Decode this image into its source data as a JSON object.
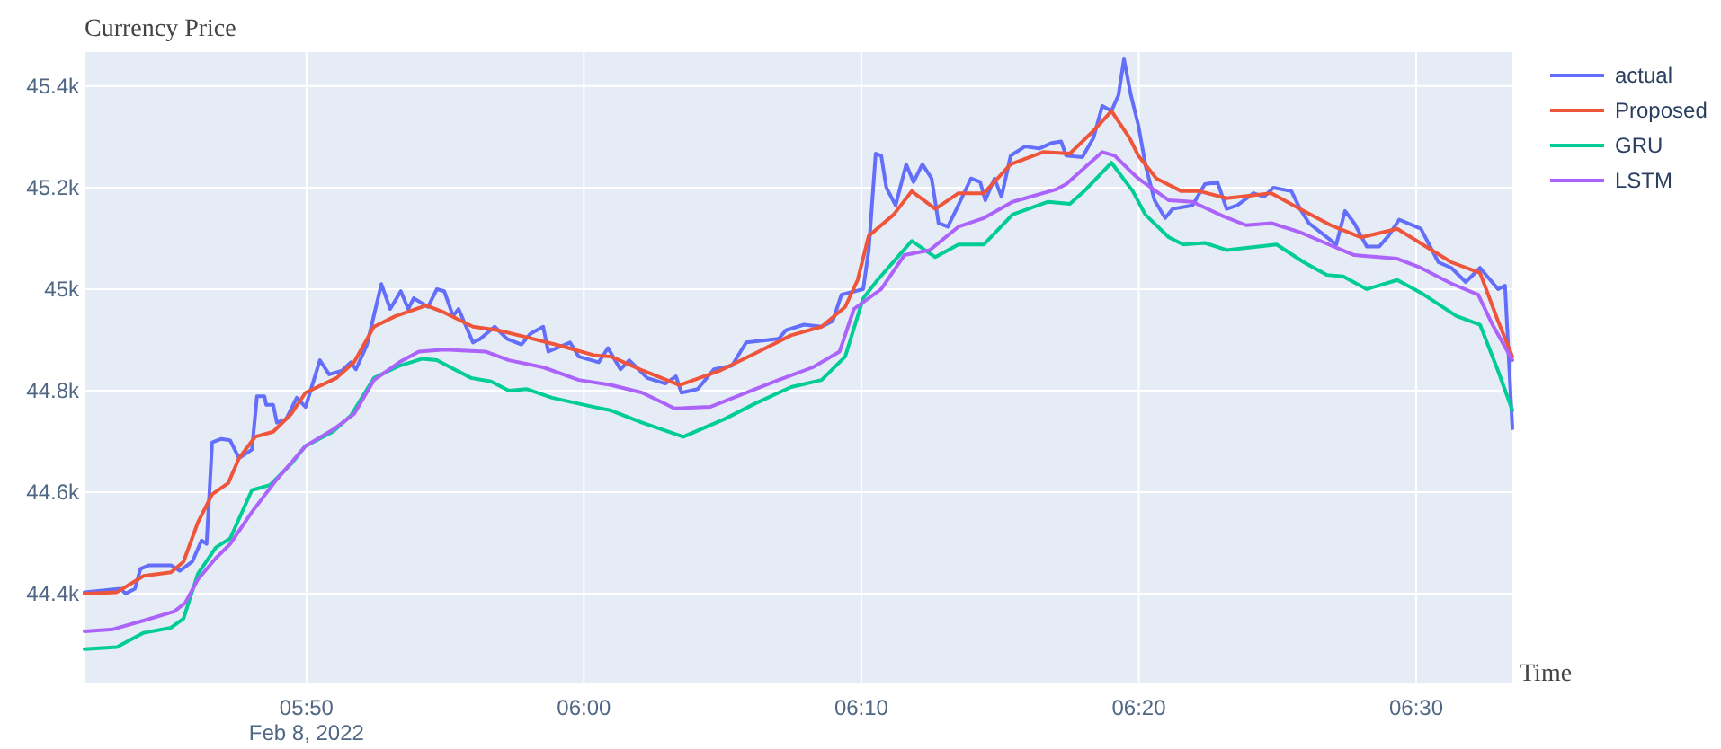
{
  "chart_data": {
    "type": "line",
    "title": "Currency Price",
    "xlabel": "Time",
    "xlim": [
      "2022-02-08T05:42:00",
      "2022-02-08T06:33:28"
    ],
    "xticks": [
      {
        "value": "2022-02-08T05:50:00",
        "label": "05:50\nFeb 8, 2022"
      },
      {
        "value": "2022-02-08T06:00:00",
        "label": "06:00"
      },
      {
        "value": "2022-02-08T06:10:00",
        "label": "06:10"
      },
      {
        "value": "2022-02-08T06:20:00",
        "label": "06:20"
      },
      {
        "value": "2022-02-08T06:30:00",
        "label": "06:30"
      }
    ],
    "ylim": [
      44225,
      45467
    ],
    "yticks": [
      {
        "value": 44400,
        "label": "44.4k"
      },
      {
        "value": 44600,
        "label": "44.6k"
      },
      {
        "value": 44800,
        "label": "44.8k"
      },
      {
        "value": 45000,
        "label": "45k"
      },
      {
        "value": 45200,
        "label": "45.2k"
      },
      {
        "value": 45400,
        "label": "45.4k"
      }
    ],
    "grid": true,
    "legend": "top right",
    "line_style": "solid",
    "series": [
      {
        "name": "actual",
        "color": "#636efa",
        "x": [
          "2022-02-08T05:42:00",
          "2022-02-08T05:43:18",
          "2022-02-08T05:43:29",
          "2022-02-08T05:43:49",
          "2022-02-08T05:44:01",
          "2022-02-08T05:44:20",
          "2022-02-08T05:45:07",
          "2022-02-08T05:45:26",
          "2022-02-08T05:45:53",
          "2022-02-08T05:46:13",
          "2022-02-08T05:46:24",
          "2022-02-08T05:46:36",
          "2022-02-08T05:46:56",
          "2022-02-08T05:47:15",
          "2022-02-08T05:47:34",
          "2022-02-08T05:48:02",
          "2022-02-08T05:48:13",
          "2022-02-08T05:48:29",
          "2022-02-08T05:48:33",
          "2022-02-08T05:48:48",
          "2022-02-08T05:48:56",
          "2022-02-08T05:49:16",
          "2022-02-08T05:49:39",
          "2022-02-08T05:49:58",
          "2022-02-08T05:50:29",
          "2022-02-08T05:50:49",
          "2022-02-08T05:51:16",
          "2022-02-08T05:51:36",
          "2022-02-08T05:51:47",
          "2022-02-08T05:52:11",
          "2022-02-08T05:52:42",
          "2022-02-08T05:53:01",
          "2022-02-08T05:53:24",
          "2022-02-08T05:53:40",
          "2022-02-08T05:53:52",
          "2022-02-08T05:54:23",
          "2022-02-08T05:54:42",
          "2022-02-08T05:54:58",
          "2022-02-08T05:55:17",
          "2022-02-08T05:55:29",
          "2022-02-08T05:56:00",
          "2022-02-08T05:56:16",
          "2022-02-08T05:56:47",
          "2022-02-08T05:57:14",
          "2022-02-08T05:57:45",
          "2022-02-08T05:58:04",
          "2022-02-08T05:58:32",
          "2022-02-08T05:58:43",
          "2022-02-08T05:59:30",
          "2022-02-08T05:59:49",
          "2022-02-08T06:00:32",
          "2022-02-08T06:00:52",
          "2022-02-08T06:01:19",
          "2022-02-08T06:01:38",
          "2022-02-08T06:02:17",
          "2022-02-08T06:02:56",
          "2022-02-08T06:03:19",
          "2022-02-08T06:03:31",
          "2022-02-08T06:04:06",
          "2022-02-08T06:04:41",
          "2022-02-08T06:05:20",
          "2022-02-08T06:05:51",
          "2022-02-08T06:07:01",
          "2022-02-08T06:07:17",
          "2022-02-08T06:07:56",
          "2022-02-08T06:08:34",
          "2022-02-08T06:08:58",
          "2022-02-08T06:09:17",
          "2022-02-08T06:10:04",
          "2022-02-08T06:10:16",
          "2022-02-08T06:10:31",
          "2022-02-08T06:10:43",
          "2022-02-08T06:10:54",
          "2022-02-08T06:11:14",
          "2022-02-08T06:11:37",
          "2022-02-08T06:11:53",
          "2022-02-08T06:12:12",
          "2022-02-08T06:12:32",
          "2022-02-08T06:12:47",
          "2022-02-08T06:13:07",
          "2022-02-08T06:13:26",
          "2022-02-08T06:13:57",
          "2022-02-08T06:14:17",
          "2022-02-08T06:14:28",
          "2022-02-08T06:14:48",
          "2022-02-08T06:15:03",
          "2022-02-08T06:15:23",
          "2022-02-08T06:15:54",
          "2022-02-08T06:16:25",
          "2022-02-08T06:16:52",
          "2022-02-08T06:17:12",
          "2022-02-08T06:17:23",
          "2022-02-08T06:17:58",
          "2022-02-08T06:18:22",
          "2022-02-08T06:18:41",
          "2022-02-08T06:19:01",
          "2022-02-08T06:19:16",
          "2022-02-08T06:19:28",
          "2022-02-08T06:19:43",
          "2022-02-08T06:19:59",
          "2022-02-08T06:20:15",
          "2022-02-08T06:20:34",
          "2022-02-08T06:20:57",
          "2022-02-08T06:21:13",
          "2022-02-08T06:21:56",
          "2022-02-08T06:22:23",
          "2022-02-08T06:22:50",
          "2022-02-08T06:23:10",
          "2022-02-08T06:23:33",
          "2022-02-08T06:24:08",
          "2022-02-08T06:24:31",
          "2022-02-08T06:24:51",
          "2022-02-08T06:25:30",
          "2022-02-08T06:25:49",
          "2022-02-08T06:26:08",
          "2022-02-08T06:26:43",
          "2022-02-08T06:27:07",
          "2022-02-08T06:27:26",
          "2022-02-08T06:27:46",
          "2022-02-08T06:28:13",
          "2022-02-08T06:28:40",
          "2022-02-08T06:29:00",
          "2022-02-08T06:29:23",
          "2022-02-08T06:30:10",
          "2022-02-08T06:30:48",
          "2022-02-08T06:31:16",
          "2022-02-08T06:31:47",
          "2022-02-08T06:32:18",
          "2022-02-08T06:32:57",
          "2022-02-08T06:33:12",
          "2022-02-08T06:33:28"
        ],
        "values": [
          44403,
          44410,
          44400,
          44410,
          44449,
          44456,
          44456,
          44445,
          44463,
          44505,
          44498,
          44698,
          44705,
          44702,
          44667,
          44684,
          44789,
          44789,
          44772,
          44772,
          44737,
          44744,
          44786,
          44768,
          44860,
          44832,
          44839,
          44856,
          44842,
          44891,
          45010,
          44961,
          44996,
          44961,
          44982,
          44965,
          45000,
          44996,
          44947,
          44961,
          44895,
          44902,
          44926,
          44902,
          44891,
          44912,
          44926,
          44877,
          44895,
          44867,
          44856,
          44884,
          44842,
          44860,
          44825,
          44814,
          44828,
          44796,
          44803,
          44842,
          44849,
          44895,
          44902,
          44919,
          44930,
          44926,
          44937,
          44989,
          45000,
          45077,
          45267,
          45263,
          45200,
          45165,
          45246,
          45211,
          45246,
          45218,
          45130,
          45123,
          45158,
          45218,
          45211,
          45175,
          45218,
          45182,
          45263,
          45281,
          45277,
          45288,
          45291,
          45263,
          45260,
          45298,
          45361,
          45351,
          45382,
          45453,
          45382,
          45323,
          45242,
          45175,
          45140,
          45158,
          45165,
          45207,
          45211,
          45158,
          45165,
          45189,
          45182,
          45200,
          45193,
          45158,
          45130,
          45105,
          45088,
          45154,
          45130,
          45084,
          45084,
          45105,
          45137,
          45119,
          45053,
          45042,
          45014,
          45042,
          45000,
          45007,
          44726
        ]
      },
      {
        "name": "Proposed",
        "color": "#ef553b",
        "x": [
          "2022-02-08T05:42:00",
          "2022-02-08T05:43:10",
          "2022-02-08T05:44:08",
          "2022-02-08T05:45:07",
          "2022-02-08T05:45:34",
          "2022-02-08T05:46:05",
          "2022-02-08T05:46:36",
          "2022-02-08T05:47:11",
          "2022-02-08T05:47:34",
          "2022-02-08T05:48:09",
          "2022-02-08T05:48:48",
          "2022-02-08T05:49:27",
          "2022-02-08T05:49:58",
          "2022-02-08T05:51:05",
          "2022-02-08T05:51:43",
          "2022-02-08T05:52:26",
          "2022-02-08T05:53:13",
          "2022-02-08T05:54:19",
          "2022-02-08T05:54:58",
          "2022-02-08T05:56:00",
          "2022-02-08T05:56:54",
          "2022-02-08T05:57:57",
          "2022-02-08T05:59:11",
          "2022-02-08T06:00:21",
          "2022-02-08T06:00:59",
          "2022-02-08T06:02:09",
          "2022-02-08T06:03:27",
          "2022-02-08T06:04:53",
          "2022-02-08T06:06:11",
          "2022-02-08T06:07:28",
          "2022-02-08T06:08:34",
          "2022-02-08T06:09:25",
          "2022-02-08T06:09:52",
          "2022-02-08T06:10:16",
          "2022-02-08T06:11:10",
          "2022-02-08T06:11:49",
          "2022-02-08T06:12:40",
          "2022-02-08T06:13:30",
          "2022-02-08T06:14:25",
          "2022-02-08T06:15:23",
          "2022-02-08T06:16:33",
          "2022-02-08T06:17:31",
          "2022-02-08T06:18:22",
          "2022-02-08T06:19:01",
          "2022-02-08T06:19:40",
          "2022-02-08T06:19:59",
          "2022-02-08T06:20:38",
          "2022-02-08T06:21:32",
          "2022-02-08T06:22:11",
          "2022-02-08T06:23:10",
          "2022-02-08T06:24:47",
          "2022-02-08T06:25:49",
          "2022-02-08T06:26:55",
          "2022-02-08T06:28:01",
          "2022-02-08T06:29:19",
          "2022-02-08T06:30:21",
          "2022-02-08T06:31:16",
          "2022-02-08T06:32:18",
          "2022-02-08T06:32:57",
          "2022-02-08T06:33:28"
        ],
        "values": [
          44400,
          44403,
          44435,
          44442,
          44463,
          44540,
          44596,
          44618,
          44667,
          44709,
          44719,
          44754,
          44796,
          44825,
          44856,
          44926,
          44947,
          44968,
          44954,
          44926,
          44919,
          44905,
          44888,
          44870,
          44867,
          44839,
          44811,
          44839,
          44874,
          44909,
          44926,
          44965,
          45018,
          45105,
          45147,
          45193,
          45158,
          45189,
          45189,
          45246,
          45270,
          45267,
          45312,
          45351,
          45298,
          45263,
          45218,
          45193,
          45193,
          45179,
          45189,
          45158,
          45126,
          45102,
          45119,
          45084,
          45053,
          45032,
          44937,
          44867
        ]
      },
      {
        "name": "GRU",
        "color": "#00cc96",
        "x": [
          "2022-02-08T05:42:00",
          "2022-02-08T05:43:10",
          "2022-02-08T05:44:08",
          "2022-02-08T05:45:07",
          "2022-02-08T05:45:34",
          "2022-02-08T05:46:05",
          "2022-02-08T05:46:44",
          "2022-02-08T05:47:15",
          "2022-02-08T05:48:02",
          "2022-02-08T05:48:41",
          "2022-02-08T05:49:27",
          "2022-02-08T05:49:58",
          "2022-02-08T05:50:57",
          "2022-02-08T05:51:36",
          "2022-02-08T05:52:26",
          "2022-02-08T05:53:21",
          "2022-02-08T05:54:11",
          "2022-02-08T05:54:42",
          "2022-02-08T05:55:56",
          "2022-02-08T05:56:39",
          "2022-02-08T05:57:18",
          "2022-02-08T05:57:57",
          "2022-02-08T05:58:51",
          "2022-02-08T06:00:21",
          "2022-02-08T06:00:59",
          "2022-02-08T06:02:06",
          "2022-02-08T06:03:35",
          "2022-02-08T06:05:04",
          "2022-02-08T06:06:11",
          "2022-02-08T06:07:28",
          "2022-02-08T06:08:34",
          "2022-02-08T06:09:25",
          "2022-02-08T06:10:04",
          "2022-02-08T06:10:35",
          "2022-02-08T06:11:22",
          "2022-02-08T06:11:49",
          "2022-02-08T06:12:40",
          "2022-02-08T06:13:30",
          "2022-02-08T06:14:25",
          "2022-02-08T06:15:27",
          "2022-02-08T06:16:44",
          "2022-02-08T06:17:31",
          "2022-02-08T06:18:02",
          "2022-02-08T06:19:01",
          "2022-02-08T06:19:47",
          "2022-02-08T06:20:14",
          "2022-02-08T06:21:05",
          "2022-02-08T06:21:36",
          "2022-02-08T06:22:23",
          "2022-02-08T06:23:10",
          "2022-02-08T06:24:58",
          "2022-02-08T06:25:57",
          "2022-02-08T06:26:47",
          "2022-02-08T06:27:22",
          "2022-02-08T06:28:13",
          "2022-02-08T06:29:19",
          "2022-02-08T06:30:10",
          "2022-02-08T06:31:27",
          "2022-02-08T06:32:18",
          "2022-02-08T06:32:57",
          "2022-02-08T06:33:28"
        ],
        "values": [
          44291,
          44295,
          44323,
          44333,
          44351,
          44439,
          44491,
          44509,
          44604,
          44614,
          44656,
          44691,
          44719,
          44751,
          44825,
          44849,
          44863,
          44860,
          44825,
          44818,
          44800,
          44803,
          44786,
          44768,
          44761,
          44737,
          44709,
          44744,
          44775,
          44807,
          44821,
          44867,
          44982,
          45018,
          45067,
          45095,
          45063,
          45088,
          45088,
          45147,
          45172,
          45168,
          45193,
          45249,
          45193,
          45147,
          45102,
          45088,
          45091,
          45077,
          45088,
          45053,
          45028,
          45025,
          45000,
          45018,
          44993,
          44947,
          44930,
          44839,
          44761
        ]
      },
      {
        "name": "LSTM",
        "color": "#ab63fa",
        "x": [
          "2022-02-08T05:42:00",
          "2022-02-08T05:43:02",
          "2022-02-08T05:44:08",
          "2022-02-08T05:45:14",
          "2022-02-08T05:45:38",
          "2022-02-08T05:46:05",
          "2022-02-08T05:46:44",
          "2022-02-08T05:47:15",
          "2022-02-08T05:48:02",
          "2022-02-08T05:48:52",
          "2022-02-08T05:49:58",
          "2022-02-08T05:50:57",
          "2022-02-08T05:51:43",
          "2022-02-08T05:52:26",
          "2022-02-08T05:53:21",
          "2022-02-08T05:54:03",
          "2022-02-08T05:54:58",
          "2022-02-08T05:56:27",
          "2022-02-08T05:57:18",
          "2022-02-08T05:58:32",
          "2022-02-08T05:59:49",
          "2022-02-08T06:00:59",
          "2022-02-08T06:02:06",
          "2022-02-08T06:03:16",
          "2022-02-08T06:04:33",
          "2022-02-08T06:05:43",
          "2022-02-08T06:07:01",
          "2022-02-08T06:08:15",
          "2022-02-08T06:09:13",
          "2022-02-08T06:09:44",
          "2022-02-08T06:10:43",
          "2022-02-08T06:11:33",
          "2022-02-08T06:12:28",
          "2022-02-08T06:13:30",
          "2022-02-08T06:14:25",
          "2022-02-08T06:15:27",
          "2022-02-08T06:17:00",
          "2022-02-08T06:17:23",
          "2022-02-08T06:18:41",
          "2022-02-08T06:19:08",
          "2022-02-08T06:19:47",
          "2022-02-08T06:19:59",
          "2022-02-08T06:21:05",
          "2022-02-08T06:21:56",
          "2022-02-08T06:23:02",
          "2022-02-08T06:23:52",
          "2022-02-08T06:24:47",
          "2022-02-08T06:25:49",
          "2022-02-08T06:26:43",
          "2022-02-08T06:27:46",
          "2022-02-08T06:29:19",
          "2022-02-08T06:30:10",
          "2022-02-08T06:31:16",
          "2022-02-08T06:32:14",
          "2022-02-08T06:32:45",
          "2022-02-08T06:33:28"
        ],
        "values": [
          44326,
          44330,
          44347,
          44365,
          44382,
          44428,
          44470,
          44498,
          44561,
          44621,
          44691,
          44723,
          44754,
          44821,
          44856,
          44877,
          44881,
          44877,
          44860,
          44846,
          44821,
          44811,
          44796,
          44765,
          44768,
          44793,
          44821,
          44846,
          44877,
          44961,
          45000,
          45067,
          45077,
          45123,
          45140,
          45172,
          45196,
          45207,
          45270,
          45263,
          45228,
          45218,
          45175,
          45172,
          45144,
          45126,
          45130,
          45112,
          45091,
          45067,
          45060,
          45042,
          45011,
          44989,
          44930,
          44860
        ]
      }
    ]
  }
}
